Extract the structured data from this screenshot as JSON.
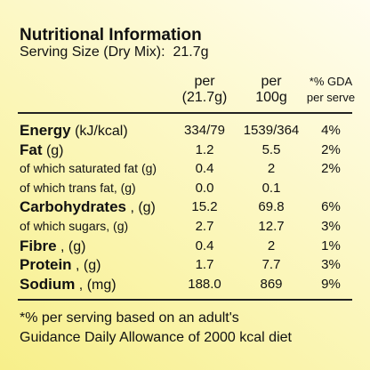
{
  "title": "Nutritional Information",
  "serving": {
    "label": "Serving Size (Dry Mix):",
    "value": "21.7g"
  },
  "header": [
    {
      "line1": "per",
      "line2": "(21.7g)"
    },
    {
      "line1": "per",
      "line2": "100g"
    },
    {
      "line1": "*% GDA",
      "line2": "per serve"
    }
  ],
  "rows": [
    {
      "label": "Energy",
      "unit": "(kJ/kcal)",
      "bold": true,
      "values": [
        "334/79",
        "1539/364",
        "4%"
      ]
    },
    {
      "label": "Fat",
      "unit": "(g)",
      "bold": true,
      "values": [
        "1.2",
        "5.5",
        "2%"
      ]
    },
    {
      "label": "of which saturated fat (g)",
      "bold": false,
      "values": [
        "0.4",
        "2",
        "2%"
      ]
    },
    {
      "label": "of which trans fat, (g)",
      "bold": false,
      "values": [
        "0.0",
        "0.1"
      ]
    },
    {
      "label": "Carbohydrates",
      "unit": ", (g)",
      "bold": true,
      "values": [
        "15.2",
        "69.8",
        "6%"
      ]
    },
    {
      "label": "of which sugars, (g)",
      "bold": false,
      "values": [
        "2.7",
        "12.7",
        "3%"
      ]
    },
    {
      "label": "Fibre",
      "unit": ", (g)",
      "bold": true,
      "values": [
        "0.4",
        "2",
        "1%"
      ]
    },
    {
      "label": "Protein",
      "unit": ", (g)",
      "bold": true,
      "values": [
        "1.7",
        "7.7",
        "3%"
      ]
    },
    {
      "label": "Sodium",
      "unit": ", (mg)",
      "bold": true,
      "values": [
        "188.0",
        "869",
        "9%"
      ]
    }
  ],
  "footnote": [
    "*% per serving based on an adult's",
    "Guidance Daily Allowance of 2000 kcal diet"
  ]
}
